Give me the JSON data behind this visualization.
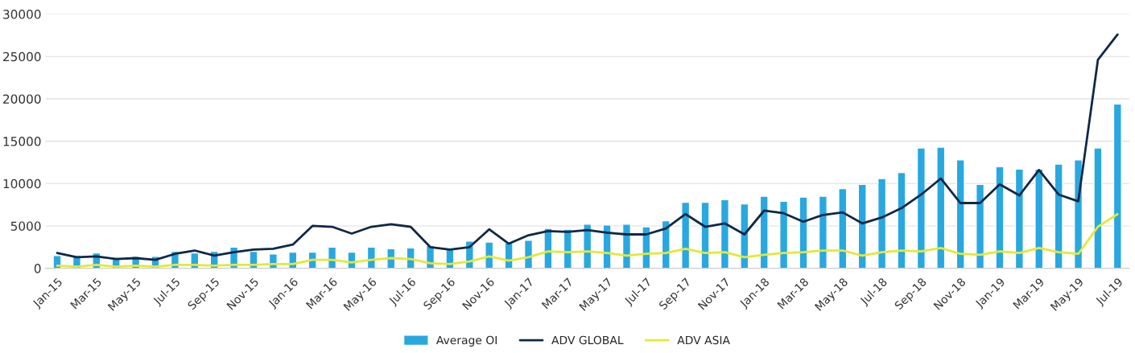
{
  "chart_data": {
    "type": "bar",
    "categories": [
      "Jan-15",
      null,
      "Mar-15",
      null,
      "May-15",
      null,
      "Jul-15",
      null,
      "Sep-15",
      null,
      "Nov-15",
      null,
      "Jan-16",
      null,
      "Mar-16",
      null,
      "May-16",
      null,
      "Jul-16",
      null,
      "Sep-16",
      null,
      "Nov-16",
      null,
      "Jan-17",
      null,
      "Mar-17",
      null,
      "May-17",
      null,
      "Jul-17",
      null,
      "Sep-17",
      null,
      "Nov-17",
      null,
      "Jan-18",
      null,
      "Mar-18",
      null,
      "May-18",
      null,
      "Jul-18",
      null,
      "Sep-18",
      null,
      "Nov-18",
      null,
      "Jan-19",
      null,
      "Mar-19",
      null,
      "May-19",
      null,
      "Jul-19"
    ],
    "series": [
      {
        "name": "Average OI",
        "color": "#29a8e0",
        "values": [
          1500,
          1500,
          1800,
          1300,
          1400,
          1400,
          2000,
          1800,
          2000,
          2500,
          2000,
          1700,
          1900,
          1900,
          2500,
          1900,
          2500,
          2300,
          2400,
          2700,
          2300,
          3200,
          3100,
          3000,
          3300,
          4700,
          4600,
          5200,
          5100,
          5200,
          4900,
          5600,
          7800,
          7800,
          8100,
          7600,
          8500,
          7900,
          8400,
          8500,
          9400,
          9900,
          10600,
          11300,
          14200,
          14300,
          12800,
          9900,
          12000,
          11700,
          11700,
          12300,
          12800,
          14200,
          19400
        ]
      },
      {
        "name": "ADV GLOBAL",
        "type": "line",
        "color": "#0f2846",
        "values": [
          1800,
          1300,
          1400,
          1100,
          1200,
          1000,
          1700,
          2100,
          1500,
          1900,
          2200,
          2300,
          2800,
          5000,
          4900,
          4100,
          4900,
          5200,
          4900,
          2500,
          2200,
          2500,
          4600,
          2900,
          3900,
          4400,
          4300,
          4500,
          4200,
          4000,
          4000,
          4700,
          6400,
          4900,
          5300,
          4000,
          6800,
          6500,
          5500,
          6300,
          6600,
          5300,
          6000,
          7100,
          8700,
          10600,
          7700,
          7700,
          9900,
          8600,
          11600,
          8700,
          7900,
          24600,
          27600
        ]
      },
      {
        "name": "ADV ASIA",
        "type": "line",
        "color": "#e3e836",
        "values": [
          300,
          200,
          400,
          200,
          300,
          200,
          400,
          400,
          300,
          400,
          400,
          500,
          500,
          1000,
          1000,
          700,
          1000,
          1200,
          1100,
          600,
          500,
          800,
          1400,
          900,
          1300,
          2000,
          1900,
          2000,
          1800,
          1500,
          1700,
          1800,
          2300,
          1800,
          1900,
          1300,
          1600,
          1800,
          1900,
          2100,
          2100,
          1500,
          1900,
          2100,
          2000,
          2400,
          1700,
          1600,
          2000,
          1800,
          2400,
          1900,
          1700,
          4900,
          6400
        ]
      }
    ],
    "ylim": [
      0,
      30000
    ],
    "yticks": [
      0,
      5000,
      10000,
      15000,
      20000,
      25000,
      30000
    ],
    "grid": "y",
    "legend": "bottom"
  }
}
